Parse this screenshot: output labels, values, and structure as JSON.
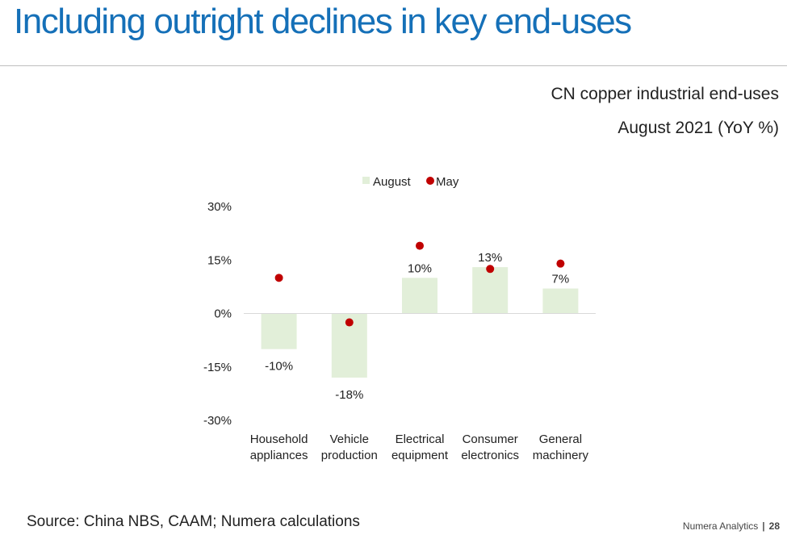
{
  "header": {
    "title": "Including outright declines in key end-uses"
  },
  "chart_heading": {
    "line1": "CN copper industrial end-uses",
    "line2": "August 2021 (YoY %)"
  },
  "footer": {
    "source": "Source: China NBS, CAAM; Numera calculations",
    "brand": "Numera Analytics",
    "separator": "|",
    "page": "28"
  },
  "colors": {
    "title": "#1570b8",
    "bar": "#e2efd9",
    "dot": "#c00000"
  },
  "chart_data": {
    "type": "bar",
    "title": "CN copper industrial end-uses August 2021 (YoY %)",
    "categories": [
      [
        "Household",
        "appliances"
      ],
      [
        "Vehicle",
        "production"
      ],
      [
        "Electrical",
        "equipment"
      ],
      [
        "Consumer",
        "electronics"
      ],
      [
        "General",
        "machinery"
      ]
    ],
    "series": [
      {
        "name": "August",
        "kind": "bar",
        "values": [
          -10,
          -18,
          10,
          13,
          7
        ],
        "labels": [
          "-10%",
          "-18%",
          "10%",
          "13%",
          "7%"
        ]
      },
      {
        "name": "May",
        "kind": "dot",
        "values": [
          10,
          -2.5,
          19,
          12.5,
          14
        ]
      }
    ],
    "yticks": [
      30,
      15,
      0,
      -15,
      -30
    ],
    "ytick_labels": [
      "30%",
      "15%",
      "0%",
      "-15%",
      "-30%"
    ],
    "ylim": [
      -30,
      30
    ],
    "xlabel": "",
    "ylabel": "",
    "legend_position": "top-center",
    "grid": false
  }
}
